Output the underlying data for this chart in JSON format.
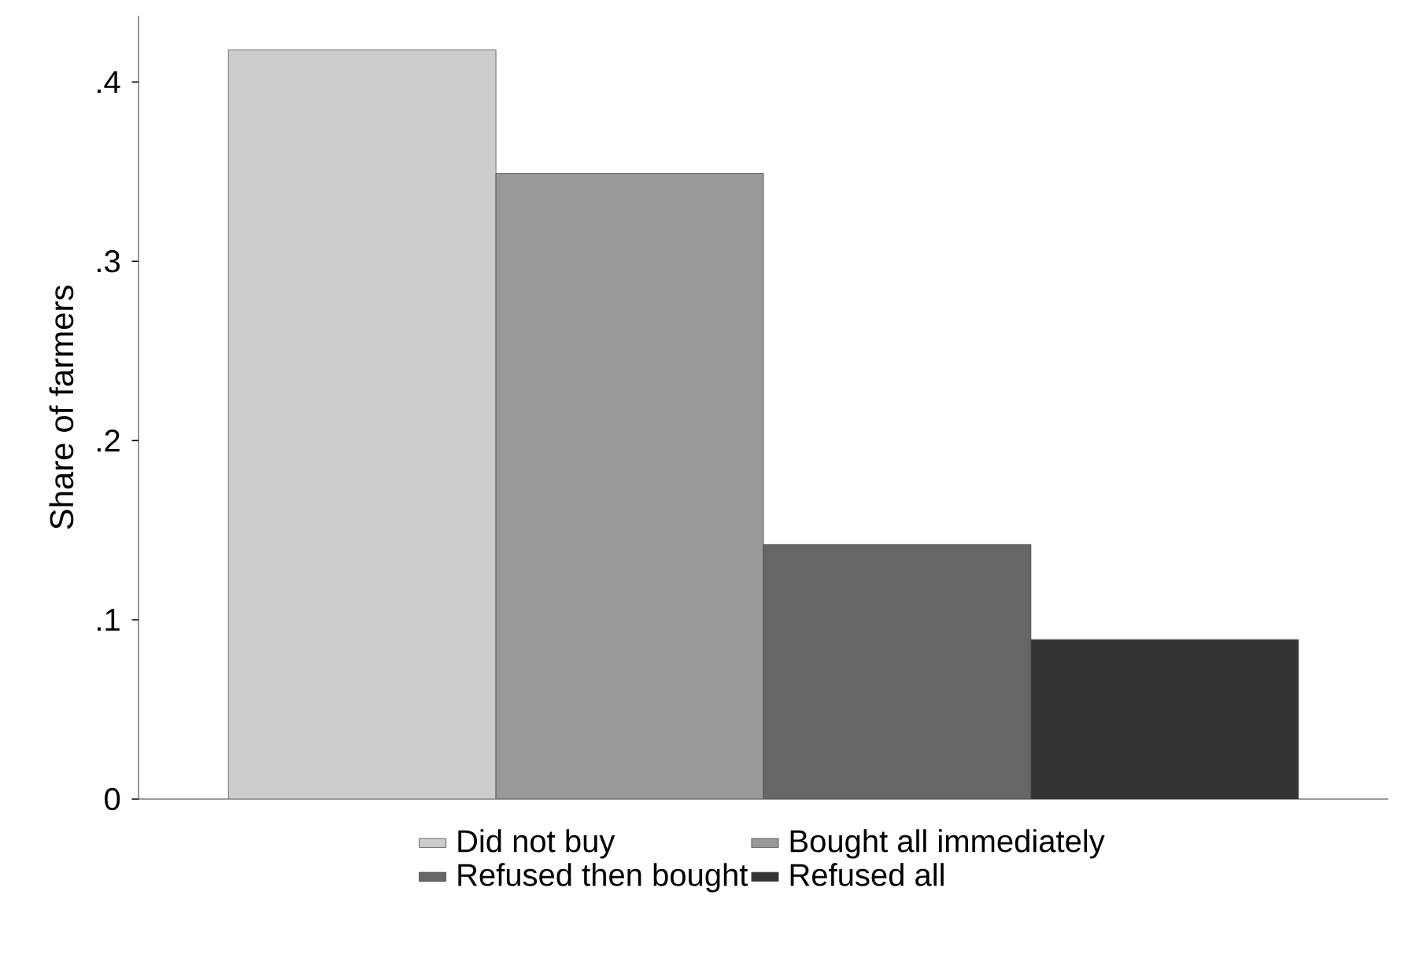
{
  "chart_data": {
    "type": "bar",
    "ylabel": "Share of farmers",
    "categories": [
      null
    ],
    "series": [
      {
        "name": "Did not buy",
        "color": "#cccccc",
        "values": [
          0.418
        ]
      },
      {
        "name": "Bought all immediately",
        "color": "#999999",
        "values": [
          0.349
        ]
      },
      {
        "name": "Refused then bought",
        "color": "#666666",
        "values": [
          0.142
        ]
      },
      {
        "name": "Refused all",
        "color": "#333333",
        "values": [
          0.089
        ]
      }
    ],
    "ylim": [
      0,
      0.437
    ],
    "yticks": [
      0,
      {
        "value": 0.1,
        "label": ".1"
      },
      {
        "value": 0.2,
        "label": ".2"
      },
      {
        "value": 0.3,
        "label": ".3"
      },
      {
        "value": 0.4,
        "label": ".4"
      }
    ],
    "grid": false,
    "legend": "bottom"
  }
}
